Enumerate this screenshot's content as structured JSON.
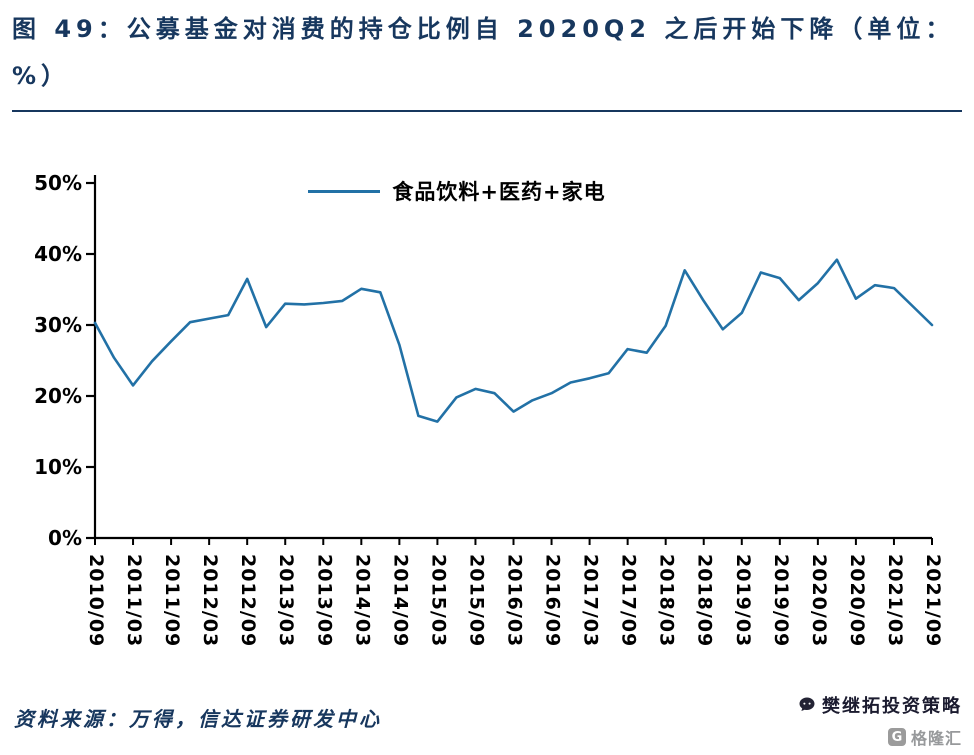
{
  "header": {
    "title": "图 49：公募基金对消费的持仓比例自 2020Q2 之后开始下降（单位：%）"
  },
  "colors": {
    "accent_navy": "#17375E",
    "series_line": "#2271A6",
    "axis": "#000000",
    "watermark_gray": "#97999b"
  },
  "chart_data": {
    "type": "line",
    "title": "",
    "legend_position": "top-center",
    "grid": false,
    "ylim": [
      0,
      50
    ],
    "y_tick_labels": [
      "50%",
      "40%",
      "30%",
      "20%",
      "10%",
      "0%"
    ],
    "x_labels_shown": [
      "2010/09",
      "2011/03",
      "2011/09",
      "2012/03",
      "2012/09",
      "2013/03",
      "2013/09",
      "2014/03",
      "2014/09",
      "2015/03",
      "2015/09",
      "2016/03",
      "2016/09",
      "2017/03",
      "2017/09",
      "2018/03",
      "2018/09",
      "2019/03",
      "2019/09",
      "2020/03",
      "2020/09",
      "2021/03",
      "2021/09"
    ],
    "x": [
      "2010/09",
      "2010/12",
      "2011/03",
      "2011/06",
      "2011/09",
      "2011/12",
      "2012/03",
      "2012/06",
      "2012/09",
      "2012/12",
      "2013/03",
      "2013/06",
      "2013/09",
      "2013/12",
      "2014/03",
      "2014/06",
      "2014/09",
      "2014/12",
      "2015/03",
      "2015/06",
      "2015/09",
      "2015/12",
      "2016/03",
      "2016/06",
      "2016/09",
      "2016/12",
      "2017/03",
      "2017/06",
      "2017/09",
      "2017/12",
      "2018/03",
      "2018/06",
      "2018/09",
      "2018/12",
      "2019/03",
      "2019/06",
      "2019/09",
      "2019/12",
      "2020/03",
      "2020/06",
      "2020/09",
      "2020/12",
      "2021/03",
      "2021/06",
      "2021/09"
    ],
    "series": [
      {
        "name": "食品饮料+医药+家电",
        "color": "#2271A6",
        "values": [
          30.3,
          25.4,
          21.5,
          24.9,
          27.7,
          30.4,
          30.9,
          31.4,
          36.5,
          29.7,
          33.0,
          32.9,
          33.1,
          33.4,
          35.1,
          34.6,
          27.2,
          17.2,
          16.4,
          19.8,
          21.0,
          20.4,
          17.8,
          19.4,
          20.4,
          21.9,
          22.5,
          23.2,
          26.6,
          26.1,
          29.9,
          37.7,
          33.4,
          29.4,
          31.7,
          37.4,
          36.6,
          33.5,
          35.9,
          39.2,
          33.7,
          35.6,
          35.2,
          32.6,
          30.0
        ]
      }
    ]
  },
  "footer": {
    "source": "资料来源：万得，信达证券研发中心",
    "strategy_account": "樊继拓投资策略",
    "watermark_text": "格隆汇",
    "watermark_logo_glyph": "G"
  }
}
